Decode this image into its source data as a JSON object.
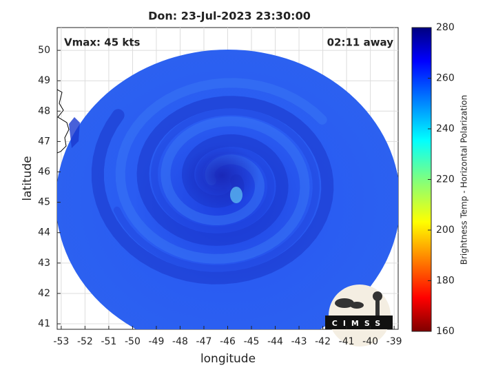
{
  "chart_data": {
    "type": "map",
    "title": "Don: 23-Jul-2023 23:30:00",
    "annotations": [
      "Vmax: 45 kts",
      "02:11 away"
    ],
    "x_label": "longitude",
    "y_label": "latitude",
    "xlim": [
      -53.17,
      -38.83
    ],
    "ylim": [
      40.82,
      50.75
    ],
    "xticks": [
      -53,
      -52,
      -51,
      -50,
      -49,
      -48,
      -47,
      -46,
      -45,
      -44,
      -43,
      -42,
      -41,
      -40,
      -39
    ],
    "yticks": [
      41,
      42,
      43,
      44,
      45,
      46,
      47,
      48,
      49,
      50
    ],
    "grid": true,
    "colorbar": {
      "label": "Brightness Temp - Horizontal Polarization",
      "lim": [
        160,
        280
      ],
      "ticks": [
        160,
        180,
        200,
        220,
        240,
        260,
        280
      ]
    },
    "logo": "CIMSS"
  }
}
